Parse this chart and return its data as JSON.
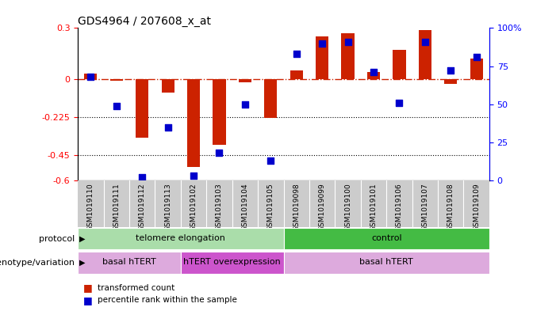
{
  "title": "GDS4964 / 207608_x_at",
  "samples": [
    "GSM1019110",
    "GSM1019111",
    "GSM1019112",
    "GSM1019113",
    "GSM1019102",
    "GSM1019103",
    "GSM1019104",
    "GSM1019105",
    "GSM1019098",
    "GSM1019099",
    "GSM1019100",
    "GSM1019101",
    "GSM1019106",
    "GSM1019107",
    "GSM1019108",
    "GSM1019109"
  ],
  "transformed_count": [
    0.03,
    -0.01,
    -0.35,
    -0.08,
    -0.52,
    -0.39,
    -0.02,
    -0.23,
    0.05,
    0.25,
    0.27,
    0.04,
    0.17,
    0.29,
    -0.03,
    0.12
  ],
  "percentile_rank": [
    68,
    49,
    2,
    35,
    3,
    18,
    50,
    13,
    83,
    90,
    91,
    71,
    51,
    91,
    72,
    81
  ],
  "ylim_left": [
    -0.6,
    0.3
  ],
  "ylim_right": [
    0,
    100
  ],
  "yticks_left": [
    0.3,
    0.0,
    -0.225,
    -0.45,
    -0.6
  ],
  "yticks_right": [
    100,
    75,
    50,
    25,
    0
  ],
  "ytick_labels_left": [
    "0.3",
    "0",
    "-0.225",
    "-0.45",
    "-0.6"
  ],
  "ytick_labels_right": [
    "100%",
    "75",
    "50",
    "25",
    "0"
  ],
  "bar_color": "#cc2200",
  "dot_color": "#0000cc",
  "bar_width": 0.5,
  "dot_size": 30,
  "protocol_groups": [
    {
      "label": "telomere elongation",
      "start": 0,
      "end": 8,
      "color": "#aaddaa"
    },
    {
      "label": "control",
      "start": 8,
      "end": 16,
      "color": "#44bb44"
    }
  ],
  "genotype_groups": [
    {
      "label": "basal hTERT",
      "start": 0,
      "end": 4,
      "color": "#ddaadd"
    },
    {
      "label": "hTERT overexpression",
      "start": 4,
      "end": 8,
      "color": "#cc55cc"
    },
    {
      "label": "basal hTERT",
      "start": 8,
      "end": 16,
      "color": "#ddaadd"
    }
  ],
  "legend_bar_label": "transformed count",
  "legend_dot_label": "percentile rank within the sample"
}
